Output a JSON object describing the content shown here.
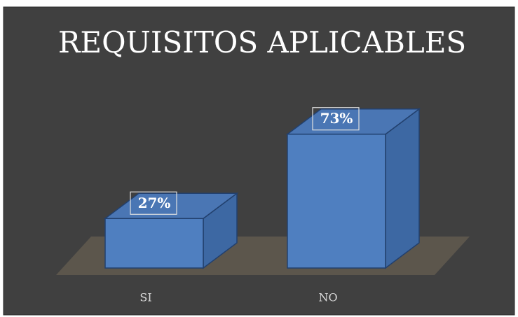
{
  "chart_data": {
    "type": "bar3d",
    "title": "REQUISITOS APLICABLES",
    "categories": [
      "SI",
      "NO"
    ],
    "values": [
      27,
      73
    ],
    "value_labels": [
      "27%",
      "73%"
    ],
    "color": "#4f7fc0"
  }
}
